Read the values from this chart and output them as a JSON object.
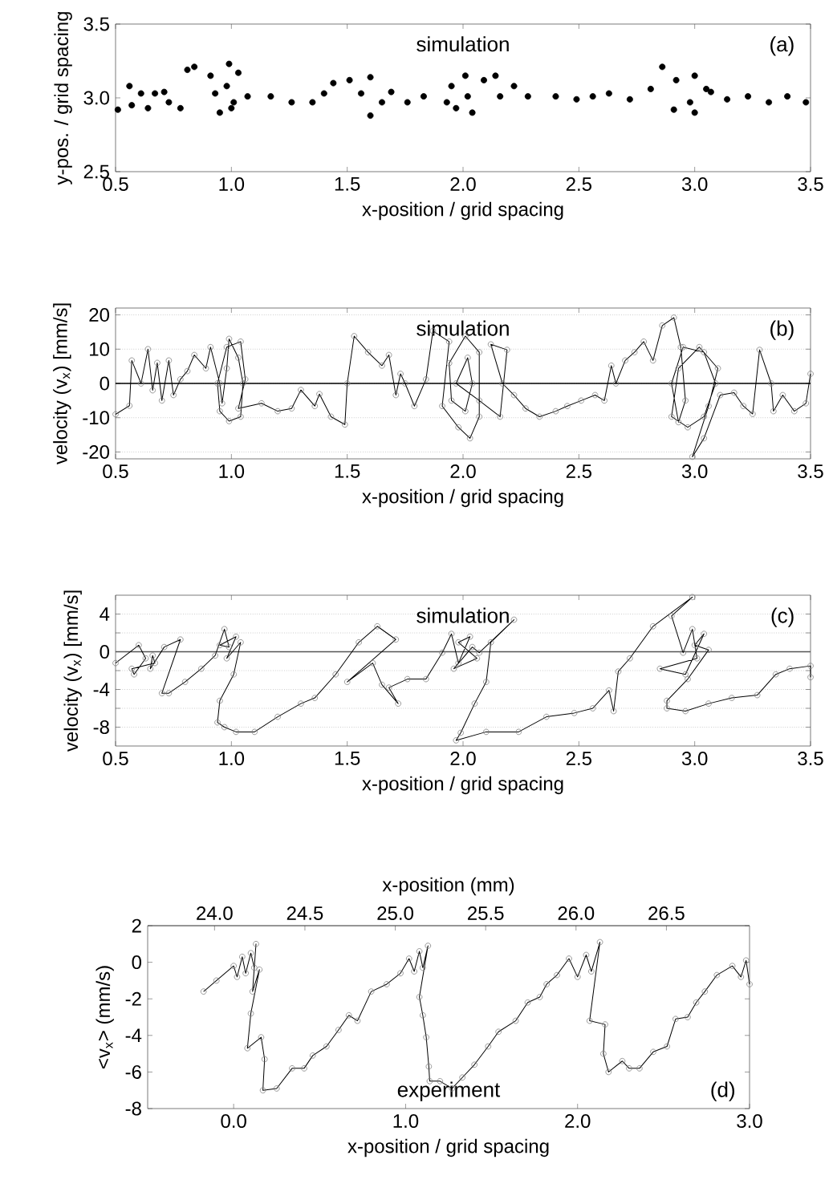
{
  "chart_data": [
    {
      "type": "scatter",
      "xlabel": "x-position / grid spacing",
      "ylabel": "y-pos. / grid spacing",
      "annotations": [
        "simulation",
        "(a)"
      ],
      "color": "#000000",
      "marker": "circle",
      "xlim": [
        0.5,
        3.5
      ],
      "xticks": [
        0.5,
        {
          "value": 1,
          "label": "1.0"
        },
        1.5,
        {
          "value": 2,
          "label": "2.0"
        },
        2.5,
        {
          "value": 3,
          "label": "3.0"
        },
        3.5
      ],
      "ylim": [
        2.5,
        3.5
      ],
      "yticks": [
        2.5,
        {
          "value": 3,
          "label": "3.0"
        },
        3.5
      ],
      "x": [
        0.51,
        0.57,
        0.56,
        0.61,
        0.64,
        0.67,
        0.73,
        0.78,
        0.71,
        0.81,
        0.84,
        0.91,
        0.93,
        0.95,
        1.0,
        0.98,
        0.99,
        1.03,
        1.01,
        1.07,
        1.17,
        1.26,
        1.35,
        1.4,
        1.44,
        1.51,
        1.6,
        1.56,
        1.6,
        1.65,
        1.69,
        1.76,
        1.83,
        1.93,
        1.95,
        1.97,
        2.01,
        2.04,
        2.02,
        2.09,
        2.14,
        2.22,
        2.16,
        2.28,
        2.4,
        2.49,
        2.56,
        2.63,
        2.72,
        2.81,
        2.86,
        2.92,
        2.91,
        2.98,
        3.0,
        3.05,
        3.0,
        3.07,
        3.14,
        3.23,
        3.32,
        3.4,
        3.48
      ],
      "values": [
        2.92,
        2.95,
        3.08,
        3.03,
        2.93,
        3.03,
        2.97,
        2.93,
        3.04,
        3.19,
        3.21,
        3.15,
        3.03,
        2.9,
        2.93,
        3.08,
        3.23,
        3.17,
        2.97,
        3.01,
        3.01,
        2.97,
        2.97,
        3.03,
        3.1,
        3.12,
        3.14,
        3.03,
        2.88,
        2.97,
        3.04,
        2.97,
        3.01,
        2.97,
        3.08,
        2.93,
        3.15,
        2.9,
        3.01,
        3.12,
        3.15,
        3.08,
        3.01,
        3.01,
        3.01,
        2.99,
        3.01,
        3.03,
        2.99,
        3.06,
        3.21,
        3.12,
        2.92,
        2.97,
        3.15,
        3.06,
        2.9,
        3.04,
        2.99,
        3.01,
        2.97,
        3.01,
        2.97
      ]
    },
    {
      "type": "line",
      "xlabel": "x-position / grid spacing",
      "ylabel": "velocity (v$_{x}$) [mm/s]",
      "annotations": [
        "simulation",
        "(b)"
      ],
      "color": "#000000",
      "marker": "circle",
      "line_style": "solid",
      "grid": "y",
      "xlim": [
        0.5,
        3.5
      ],
      "xticks": [
        0.5,
        {
          "value": 1,
          "label": "1.0"
        },
        1.5,
        {
          "value": 2,
          "label": "2.0"
        },
        2.5,
        {
          "value": 3,
          "label": "3.0"
        },
        3.5
      ],
      "ylim": [
        -22,
        22
      ],
      "yticks": [
        -20,
        -10,
        0,
        10,
        20
      ],
      "ref_lines": [
        {
          "axis": "y",
          "value": 0,
          "color": "#000000"
        }
      ],
      "x": [
        0.5,
        0.56,
        0.57,
        0.61,
        0.64,
        0.66,
        0.68,
        0.7,
        0.73,
        0.75,
        0.78,
        0.81,
        0.84,
        0.89,
        0.91,
        0.95,
        0.96,
        0.98,
        0.99,
        1.03,
        1.05,
        1.04,
        0.99,
        0.95,
        0.94,
        0.98,
        1.04,
        1.06,
        1.03,
        1.13,
        1.2,
        1.26,
        1.3,
        1.36,
        1.38,
        1.43,
        1.49,
        1.5,
        1.53,
        1.59,
        1.65,
        1.68,
        1.71,
        1.73,
        1.75,
        1.79,
        1.84,
        1.87,
        1.94,
        1.91,
        1.98,
        2.03,
        2.07,
        2.07,
        2.01,
        1.94,
        1.95,
        2.01,
        2.04,
        2.02,
        1.97,
        2.07,
        2.16,
        2.19,
        2.12,
        2.17,
        2.22,
        2.27,
        2.33,
        2.4,
        2.45,
        2.51,
        2.57,
        2.61,
        2.64,
        2.66,
        2.7,
        2.74,
        2.78,
        2.82,
        2.86,
        2.91,
        2.94,
        2.96,
        2.93,
        2.9,
        2.95,
        3.04,
        3.09,
        3.04,
        2.97,
        2.9,
        2.93,
        3.02,
        3.1,
        3.06,
        2.99,
        3.04,
        3.11,
        3.17,
        3.21,
        3.25,
        3.28,
        3.33,
        3.34,
        3.38,
        3.43,
        3.48,
        3.5
      ],
      "values": [
        -9,
        -6.5,
        6.7,
        0,
        10,
        -2,
        6,
        -5,
        6.7,
        -3.4,
        1.2,
        3.6,
        8.3,
        4.4,
        10.6,
        0,
        -5.8,
        4.4,
        13,
        7.5,
        0,
        -9.7,
        -11,
        -8.1,
        0,
        10.6,
        12.2,
        1.2,
        -7.3,
        -5.8,
        -8.1,
        -7.3,
        -1.9,
        -6.6,
        -3.1,
        -9.7,
        -12,
        0,
        13.8,
        9.1,
        5.2,
        8.3,
        -3.4,
        2.8,
        0,
        -6.6,
        1.2,
        15.3,
        12.2,
        -6.6,
        -12.8,
        -16,
        -9.7,
        9.1,
        13.8,
        5.9,
        -5,
        -8.1,
        0,
        7.5,
        0,
        -5,
        -9.7,
        9.8,
        11.4,
        0,
        -3.4,
        -7.3,
        -9.7,
        -8.1,
        -6.6,
        -5,
        -3.4,
        -5,
        5.2,
        0,
        6.7,
        9.1,
        12.2,
        6.7,
        16.9,
        19.2,
        10.6,
        -5,
        -11.3,
        0,
        10.6,
        9.1,
        0,
        -9.7,
        -12.8,
        -9.7,
        4.4,
        10.6,
        4.4,
        -6.6,
        -21.4,
        -16,
        -3.4,
        -2.7,
        -6.6,
        -8.9,
        9.8,
        0,
        -8.1,
        -3.4,
        -8.1,
        -5.8,
        2.8
      ]
    },
    {
      "type": "line",
      "xlabel": "x-position / grid spacing",
      "ylabel": "velocity (v$_{x}$) [mm/s]",
      "annotations": [
        "simulation",
        "(c)"
      ],
      "color": "#000000",
      "marker": "circle",
      "line_style": "solid",
      "grid": "y",
      "xlim": [
        0.5,
        3.5
      ],
      "xticks": [
        0.5,
        {
          "value": 1,
          "label": "1.0"
        },
        1.5,
        {
          "value": 2,
          "label": "2.0"
        },
        2.5,
        {
          "value": 3,
          "label": "3.0"
        },
        3.5
      ],
      "ylim": [
        -10,
        6
      ],
      "yticks": [
        -8,
        {
          "value": -6,
          "label": null
        },
        -4,
        {
          "value": -2,
          "label": null
        },
        0,
        {
          "value": 2,
          "label": null
        },
        4
      ],
      "ref_lines": [
        {
          "axis": "y",
          "value": 0,
          "color": "#555555"
        }
      ],
      "x": [
        0.5,
        0.6,
        0.63,
        0.58,
        0.57,
        0.67,
        0.66,
        0.65,
        0.71,
        0.78,
        0.7,
        0.73,
        0.8,
        0.87,
        0.93,
        0.97,
        0.99,
        0.95,
        1.02,
        0.98,
        1.04,
        1.01,
        0.95,
        0.94,
        0.97,
        1.02,
        1.1,
        1.2,
        1.3,
        1.36,
        1.45,
        1.55,
        1.63,
        1.71,
        1.5,
        1.61,
        1.65,
        1.72,
        1.68,
        1.76,
        1.84,
        1.91,
        1.95,
        1.98,
        2.03,
        1.98,
        2.06,
        1.96,
        2.04,
        2.07,
        2.22,
        2.12,
        2.1,
        2.05,
        1.99,
        1.97,
        2.1,
        2.24,
        2.36,
        2.48,
        2.56,
        2.63,
        2.65,
        2.67,
        2.72,
        2.82,
        2.99,
        2.9,
        2.95,
        2.99,
        3.01,
        2.85,
        2.96,
        3.04,
        3.0,
        3.06,
        2.97,
        2.88,
        2.88,
        2.96,
        3.06,
        3.16,
        3.27,
        3.35,
        3.41,
        3.5,
        3.5
      ],
      "values": [
        -1.2,
        0.7,
        -0.7,
        -2.4,
        -1.8,
        -1.2,
        -0.4,
        -1.8,
        0.5,
        1.3,
        -4.4,
        -4.4,
        -3.2,
        -1.8,
        -0.4,
        2.4,
        0.5,
        0.7,
        1.6,
        -0.7,
        1.0,
        -2.4,
        -5.2,
        -7.5,
        -8.0,
        -8.5,
        -8.5,
        -6.9,
        -5.5,
        -4.9,
        -2.4,
        1.0,
        2.7,
        1.3,
        -3.2,
        -1.2,
        -3.5,
        -5.5,
        -3.8,
        -2.9,
        -2.9,
        -0.1,
        1.9,
        -1.2,
        1.6,
        1.0,
        -0.7,
        -1.8,
        0.5,
        -0.1,
        3.4,
        1.0,
        -3.2,
        -5.5,
        -8.6,
        -9.4,
        -8.5,
        -8.5,
        -6.9,
        -6.5,
        -6.0,
        -4.1,
        -6.3,
        -2.1,
        -0.7,
        2.7,
        5.8,
        3.8,
        -0.1,
        2.4,
        -0.7,
        -1.8,
        -2.4,
        1.9,
        0.7,
        0.2,
        -2.9,
        -5.2,
        -6.0,
        -6.3,
        -5.5,
        -4.9,
        -4.6,
        -2.4,
        -1.8,
        -1.5,
        -2.7
      ]
    },
    {
      "type": "line",
      "xlabel": "x-position / grid spacing",
      "ylabel": "<v$_{x}$> (mm/s)",
      "x2label": "x-position (mm)",
      "annotations": [
        "experiment",
        "(d)"
      ],
      "color": "#000000",
      "marker": "circle",
      "line_style": "solid",
      "xlim": [
        -0.5,
        3.0
      ],
      "xticks": [
        {
          "value": 0,
          "label": "0.0"
        },
        {
          "value": 1,
          "label": "1.0"
        },
        {
          "value": 2,
          "label": "2.0"
        },
        {
          "value": 3,
          "label": "3.0"
        }
      ],
      "x2lim": [
        23.63,
        26.96
      ],
      "x2ticks": [
        {
          "value": 24,
          "label": "24.0"
        },
        24.5,
        {
          "value": 25,
          "label": "25.0"
        },
        25.5,
        {
          "value": 26,
          "label": "26.0"
        },
        26.5
      ],
      "ylim": [
        -8,
        2
      ],
      "yticks": [
        -8,
        -6,
        -4,
        -2,
        0,
        2
      ],
      "x": [
        -0.175,
        -0.1,
        0.0,
        0.02,
        0.05,
        0.07,
        0.1,
        0.12,
        0.13,
        0.11,
        0.15,
        0.1,
        0.08,
        0.16,
        0.18,
        0.17,
        0.25,
        0.34,
        0.41,
        0.46,
        0.54,
        0.61,
        0.67,
        0.72,
        0.8,
        0.89,
        0.97,
        1.02,
        1.05,
        1.08,
        1.1,
        1.13,
        1.08,
        1.1,
        1.12,
        1.135,
        1.14,
        1.2,
        1.27,
        1.33,
        1.4,
        1.48,
        1.54,
        1.64,
        1.71,
        1.78,
        1.82,
        1.88,
        1.95,
        2.0,
        2.05,
        2.08,
        2.13,
        2.07,
        2.16,
        2.15,
        2.18,
        2.26,
        2.3,
        2.36,
        2.44,
        2.52,
        2.57,
        2.64,
        2.69,
        2.74,
        2.81,
        2.9,
        2.95,
        2.98,
        3.0
      ],
      "values": [
        -1.6,
        -1.0,
        -0.2,
        -0.8,
        0.3,
        -0.6,
        0.5,
        -0.3,
        1.0,
        -1.6,
        -0.4,
        -2.8,
        -4.7,
        -4.1,
        -5.3,
        -7.0,
        -6.9,
        -5.8,
        -5.8,
        -5.1,
        -4.6,
        -3.7,
        -2.9,
        -3.2,
        -1.6,
        -1.2,
        -0.6,
        0.2,
        -0.5,
        0.6,
        -0.3,
        0.9,
        -1.9,
        -2.9,
        -4.1,
        -5.7,
        -6.5,
        -6.5,
        -6.9,
        -6.3,
        -5.6,
        -4.6,
        -3.8,
        -3.2,
        -2.2,
        -1.9,
        -1.2,
        -0.7,
        0.2,
        -0.8,
        0.4,
        -0.5,
        1.1,
        -3.2,
        -3.4,
        -5.0,
        -6.0,
        -5.4,
        -5.8,
        -5.8,
        -4.9,
        -4.6,
        -3.1,
        -3.0,
        -2.2,
        -1.6,
        -0.7,
        -0.2,
        -0.8,
        0.1,
        -1.2
      ]
    }
  ]
}
